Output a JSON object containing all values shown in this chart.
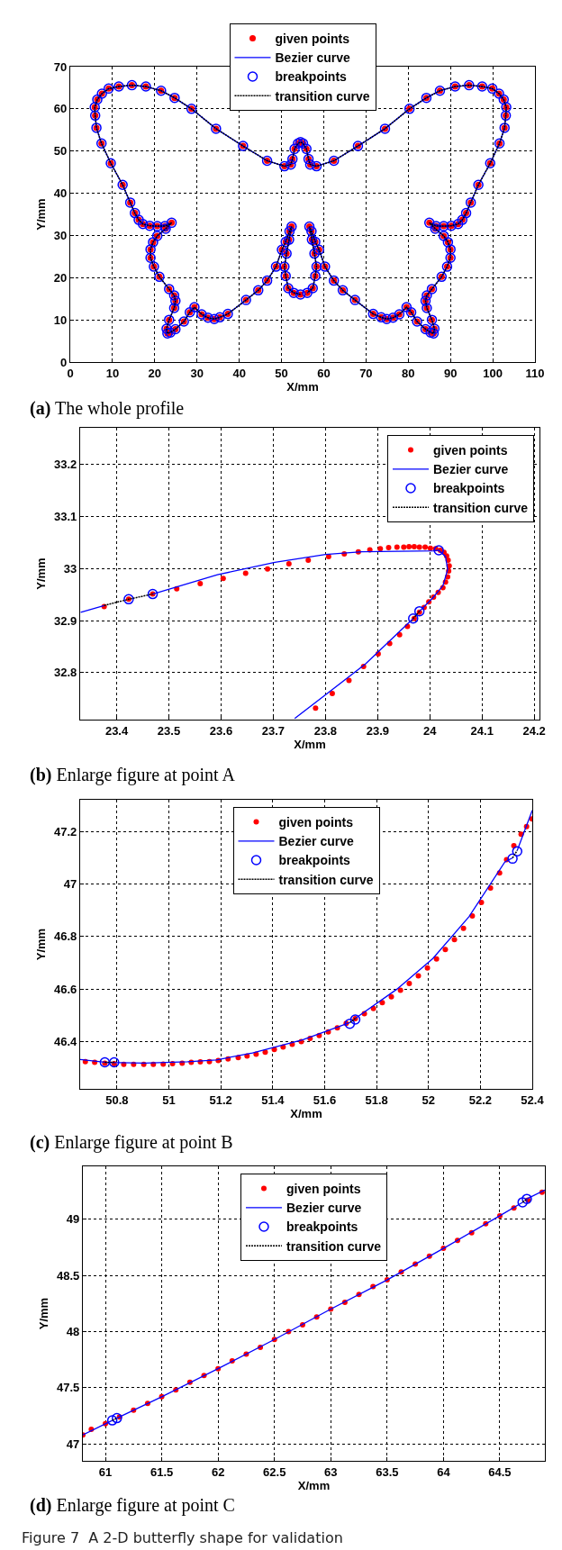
{
  "chart_data": [
    {
      "type": "scatter",
      "title": "(a) The whole profile",
      "xlabel": "X/mm",
      "ylabel": "Y/mm",
      "grid": true,
      "legend": "top",
      "xlim": [
        0,
        110
      ],
      "xticks": [
        0,
        10,
        20,
        30,
        40,
        50,
        60,
        70,
        80,
        90,
        100,
        110
      ],
      "ylim": [
        0,
        70
      ],
      "yticks": [
        0,
        10,
        20,
        30,
        40,
        50,
        60,
        70
      ],
      "series": [
        {
          "name": "given points",
          "marker": "circle",
          "color": "#ff0000",
          "x": [
            54.5,
            52.9,
            51.6,
            51.0,
            50.7,
            51.2,
            51.8,
            52.4,
            51.9,
            51.0,
            50.1,
            48.7,
            46.6,
            44.5,
            41.6,
            37.3,
            35.4,
            34.1,
            32.6,
            31.1,
            29.4,
            28.3,
            26.9,
            24.9,
            23.7,
            23.0,
            22.8,
            23.4,
            24.6,
            24.9,
            24.6,
            23.4,
            21.1,
            19.8,
            19.0,
            19.0,
            19.6,
            20.6,
            22.6,
            24.0,
            22.4,
            20.6,
            18.8,
            17.2,
            16.2,
            15.3,
            14.2,
            12.4,
            9.6,
            7.4,
            6.2,
            5.9,
            5.8,
            6.4,
            7.5,
            9.1,
            11.5,
            14.6,
            17.9,
            21.5,
            24.7,
            28.7,
            34.5,
            40.9,
            46.6,
            50.7,
            52.2,
            52.6,
            53.1,
            53.9,
            54.5,
            55.1,
            55.9,
            56.4,
            56.8,
            58.3,
            62.4,
            68.1,
            74.5,
            80.3,
            84.3,
            87.5,
            91.1,
            94.4,
            97.5,
            99.9,
            101.5,
            102.6,
            103.2,
            103.1,
            102.8,
            101.6,
            99.4,
            96.6,
            94.8,
            93.7,
            92.8,
            91.8,
            90.2,
            88.4,
            86.6,
            85.0,
            86.4,
            88.4,
            89.4,
            90.0,
            90.0,
            89.2,
            87.9,
            85.6,
            84.4,
            84.1,
            84.4,
            85.6,
            86.2,
            86.0,
            85.3,
            84.1,
            82.1,
            80.7,
            79.6,
            77.9,
            76.4,
            74.9,
            73.6,
            71.7,
            67.4,
            64.5,
            62.4,
            60.3,
            58.9,
            58.0,
            57.1,
            56.6,
            57.2,
            57.8,
            58.3,
            58.0,
            57.4,
            56.1
          ],
          "values": [
            16.0,
            16.4,
            17.5,
            20.4,
            22.6,
            25.7,
            29.0,
            32.1,
            31.0,
            28.5,
            26.6,
            22.6,
            19.3,
            17.0,
            14.7,
            11.4,
            10.6,
            10.2,
            10.5,
            11.3,
            13.0,
            11.8,
            9.6,
            7.8,
            7.0,
            6.8,
            7.9,
            10.0,
            12.8,
            14.5,
            15.8,
            17.3,
            20.2,
            22.6,
            24.7,
            26.7,
            28.4,
            29.9,
            31.6,
            33.0,
            32.2,
            32.2,
            32.3,
            32.7,
            33.7,
            35.3,
            37.8,
            42.0,
            47.1,
            51.8,
            55.5,
            58.4,
            60.4,
            62.2,
            63.6,
            64.8,
            65.3,
            65.6,
            65.3,
            64.3,
            62.6,
            60.0,
            55.3,
            51.2,
            47.7,
            46.4,
            46.8,
            48.1,
            50.5,
            51.8,
            52.1,
            51.8,
            50.5,
            48.1,
            46.8,
            46.4,
            47.7,
            51.2,
            55.3,
            60.0,
            62.6,
            64.3,
            65.3,
            65.6,
            65.3,
            64.8,
            63.6,
            62.2,
            60.4,
            58.4,
            55.5,
            51.8,
            47.1,
            42.0,
            37.8,
            35.3,
            33.7,
            32.7,
            32.3,
            32.2,
            32.2,
            33.0,
            31.6,
            29.9,
            28.4,
            26.7,
            24.7,
            22.6,
            20.2,
            17.3,
            15.8,
            14.5,
            12.8,
            10.0,
            7.9,
            6.8,
            7.0,
            7.8,
            9.6,
            11.8,
            13.0,
            11.3,
            10.5,
            10.2,
            10.6,
            11.4,
            14.7,
            17.0,
            19.3,
            22.6,
            26.6,
            28.5,
            31.0,
            32.1,
            29.0,
            25.7,
            22.6,
            20.4,
            17.5,
            16.4
          ]
        },
        {
          "name": "Bezier curve",
          "type": "line",
          "line_style": "solid",
          "color": "#0000ff",
          "x": [
            54.5,
            52.9,
            51.6,
            51.0,
            50.7,
            51.2,
            51.8,
            52.4,
            51.9,
            51.0,
            50.1,
            48.7,
            46.6,
            44.5,
            41.6,
            37.3,
            35.4,
            34.1,
            32.6,
            31.1,
            29.4,
            28.3,
            26.9,
            24.9,
            23.7,
            23.0,
            22.8,
            23.4,
            24.6,
            24.9,
            24.6,
            23.4,
            21.1,
            19.8,
            19.0,
            19.0,
            19.6,
            20.6,
            22.6,
            24.0,
            22.4,
            20.6,
            18.8,
            17.2,
            16.2,
            15.3,
            14.2,
            12.4,
            9.6,
            7.4,
            6.2,
            5.9,
            5.8,
            6.4,
            7.5,
            9.1,
            11.5,
            14.6,
            17.9,
            21.5,
            24.7,
            28.7,
            34.5,
            40.9,
            46.6,
            50.7,
            52.2,
            52.6,
            53.1,
            53.9,
            54.5,
            55.1,
            55.9,
            56.4,
            56.8,
            58.3,
            62.4,
            68.1,
            74.5,
            80.3,
            84.3,
            87.5,
            91.1,
            94.4,
            97.5,
            99.9,
            101.5,
            102.6,
            103.2,
            103.1,
            102.8,
            101.6,
            99.4,
            96.6,
            94.8,
            93.7,
            92.8,
            91.8,
            90.2,
            88.4,
            86.6,
            85.0,
            86.4,
            88.4,
            89.4,
            90.0,
            90.0,
            89.2,
            87.9,
            85.6,
            84.4,
            84.1,
            84.4,
            85.6,
            86.2,
            86.0,
            85.3,
            84.1,
            82.1,
            80.7,
            79.6,
            77.9,
            76.4,
            74.9,
            73.6,
            71.7,
            67.4,
            64.5,
            62.4,
            60.3,
            58.9,
            58.0,
            57.1,
            56.6,
            57.2,
            57.8,
            58.3,
            58.0,
            57.4,
            56.1
          ],
          "values": [
            16.0,
            16.4,
            17.5,
            20.4,
            22.6,
            25.7,
            29.0,
            32.1,
            31.0,
            28.5,
            26.6,
            22.6,
            19.3,
            17.0,
            14.7,
            11.4,
            10.6,
            10.2,
            10.5,
            11.3,
            13.0,
            11.8,
            9.6,
            7.8,
            7.0,
            6.8,
            7.9,
            10.0,
            12.8,
            14.5,
            15.8,
            17.3,
            20.2,
            22.6,
            24.7,
            26.7,
            28.4,
            29.9,
            31.6,
            33.0,
            32.2,
            32.2,
            32.3,
            32.7,
            33.7,
            35.3,
            37.8,
            42.0,
            47.1,
            51.8,
            55.5,
            58.4,
            60.4,
            62.2,
            63.6,
            64.8,
            65.3,
            65.6,
            65.3,
            64.3,
            62.6,
            60.0,
            55.3,
            51.2,
            47.7,
            46.4,
            46.8,
            48.1,
            50.5,
            51.8,
            52.1,
            51.8,
            50.5,
            48.1,
            46.8,
            46.4,
            47.7,
            51.2,
            55.3,
            60.0,
            62.6,
            64.3,
            65.3,
            65.6,
            65.3,
            64.8,
            63.6,
            62.2,
            60.4,
            58.4,
            55.5,
            51.8,
            47.1,
            42.0,
            37.8,
            35.3,
            33.7,
            32.7,
            32.3,
            32.2,
            32.2,
            33.0,
            31.6,
            29.9,
            28.4,
            26.7,
            24.7,
            22.6,
            20.2,
            17.3,
            15.8,
            14.5,
            12.8,
            10.0,
            7.9,
            6.8,
            7.0,
            7.8,
            9.6,
            11.8,
            13.0,
            11.3,
            10.5,
            10.2,
            10.6,
            11.4,
            14.7,
            17.0,
            19.3,
            22.6,
            26.6,
            28.5,
            31.0,
            32.1,
            29.0,
            25.7,
            22.6,
            20.4,
            17.5,
            16.4
          ]
        },
        {
          "name": "breakpoints",
          "color": "#0000ff",
          "x": [
            54.5,
            52.9,
            51.6,
            51.0,
            50.7,
            51.2,
            51.8,
            52.4,
            51.9,
            51.0,
            50.1,
            48.7,
            46.6,
            44.5,
            41.6,
            37.3,
            35.4,
            34.1,
            32.6,
            31.1,
            29.4,
            28.3,
            26.9,
            24.9,
            23.7,
            23.0,
            22.8,
            23.4,
            24.6,
            24.9,
            24.6,
            23.4,
            21.1,
            19.8,
            19.0,
            19.0,
            19.6,
            20.6,
            22.6,
            24.0,
            22.4,
            20.6,
            18.8,
            17.2,
            16.2,
            15.3,
            14.2,
            12.4,
            9.6,
            7.4,
            6.2,
            5.9,
            5.8,
            6.4,
            7.5,
            9.1,
            11.5,
            14.6,
            17.9,
            21.5,
            24.7,
            28.7,
            34.5,
            40.9,
            46.6,
            50.7,
            52.2,
            52.6,
            53.1,
            53.9,
            54.5,
            55.1,
            55.9,
            56.4,
            56.8,
            58.3,
            62.4,
            68.1,
            74.5,
            80.3,
            84.3,
            87.5,
            91.1,
            94.4,
            97.5,
            99.9,
            101.5,
            102.6,
            103.2,
            103.1,
            102.8,
            101.6,
            99.4,
            96.6,
            94.8,
            93.7,
            92.8,
            91.8,
            90.2,
            88.4,
            86.6,
            85.0,
            86.4,
            88.4,
            89.4,
            90.0,
            90.0,
            89.2,
            87.9,
            85.6,
            84.4,
            84.1,
            84.4,
            85.6,
            86.2,
            86.0,
            85.3,
            84.1,
            82.1,
            80.7,
            79.6,
            77.9,
            76.4,
            74.9,
            73.6,
            71.7,
            67.4,
            64.5,
            62.4,
            60.3,
            58.9,
            58.0,
            57.1,
            56.6,
            57.2,
            57.8,
            58.3,
            58.0,
            57.4,
            56.1
          ],
          "values": [
            16.0,
            16.4,
            17.5,
            20.4,
            22.6,
            25.7,
            29.0,
            32.1,
            31.0,
            28.5,
            26.6,
            22.6,
            19.3,
            17.0,
            14.7,
            11.4,
            10.6,
            10.2,
            10.5,
            11.3,
            13.0,
            11.8,
            9.6,
            7.8,
            7.0,
            6.8,
            7.9,
            10.0,
            12.8,
            14.5,
            15.8,
            17.3,
            20.2,
            22.6,
            24.7,
            26.7,
            28.4,
            29.9,
            31.6,
            33.0,
            32.2,
            32.2,
            32.3,
            32.7,
            33.7,
            35.3,
            37.8,
            42.0,
            47.1,
            51.8,
            55.5,
            58.4,
            60.4,
            62.2,
            63.6,
            64.8,
            65.3,
            65.6,
            65.3,
            64.3,
            62.6,
            60.0,
            55.3,
            51.2,
            47.7,
            46.4,
            46.8,
            48.1,
            50.5,
            51.8,
            52.1,
            51.8,
            50.5,
            48.1,
            46.8,
            46.4,
            47.7,
            51.2,
            55.3,
            60.0,
            62.6,
            64.3,
            65.3,
            65.6,
            65.3,
            64.8,
            63.6,
            62.2,
            60.4,
            58.4,
            55.5,
            51.8,
            47.1,
            42.0,
            37.8,
            35.3,
            33.7,
            32.7,
            32.3,
            32.2,
            32.2,
            33.0,
            31.6,
            29.9,
            28.4,
            26.7,
            24.7,
            22.6,
            20.2,
            17.3,
            15.8,
            14.5,
            12.8,
            10.0,
            7.9,
            6.8,
            7.0,
            7.8,
            9.6,
            11.8,
            13.0,
            11.3,
            10.5,
            10.2,
            10.6,
            11.4,
            14.7,
            17.0,
            19.3,
            22.6,
            26.6,
            28.5,
            31.0,
            32.1,
            29.0,
            25.7,
            22.6,
            20.4,
            17.5,
            16.4
          ]
        },
        {
          "name": "transition curve",
          "type": "line",
          "line_style": "dotted",
          "color": "#000000",
          "x": [
            54.5,
            52.9,
            51.6,
            51.0,
            50.7,
            51.2,
            51.8,
            52.4,
            51.9,
            51.0,
            50.1,
            48.7,
            46.6,
            44.5,
            41.6,
            37.3,
            35.4,
            34.1,
            32.6,
            31.1,
            29.4,
            28.3,
            26.9,
            24.9,
            23.7,
            23.0,
            22.8,
            23.4,
            24.6,
            24.9,
            24.6,
            23.4,
            21.1,
            19.8,
            19.0,
            19.0,
            19.6,
            20.6,
            22.6,
            24.0,
            22.4,
            20.6,
            18.8,
            17.2,
            16.2,
            15.3,
            14.2,
            12.4,
            9.6,
            7.4,
            6.2,
            5.9,
            5.8,
            6.4,
            7.5,
            9.1,
            11.5,
            14.6,
            17.9,
            21.5,
            24.7,
            28.7,
            34.5,
            40.9,
            46.6,
            50.7,
            52.2,
            52.6,
            53.1,
            53.9,
            54.5,
            55.1,
            55.9,
            56.4,
            56.8,
            58.3,
            62.4,
            68.1,
            74.5,
            80.3,
            84.3,
            87.5,
            91.1,
            94.4,
            97.5,
            99.9,
            101.5,
            102.6,
            103.2,
            103.1,
            102.8,
            101.6,
            99.4,
            96.6,
            94.8,
            93.7,
            92.8,
            91.8,
            90.2,
            88.4,
            86.6,
            85.0,
            86.4,
            88.4,
            89.4,
            90.0,
            90.0,
            89.2,
            87.9,
            85.6,
            84.4,
            84.1,
            84.4,
            85.6,
            86.2,
            86.0,
            85.3,
            84.1,
            82.1,
            80.7,
            79.6,
            77.9,
            76.4,
            74.9,
            73.6,
            71.7,
            67.4,
            64.5,
            62.4,
            60.3,
            58.9,
            58.0,
            57.1,
            56.6,
            57.2,
            57.8,
            58.3,
            58.0,
            57.4,
            56.1
          ],
          "values": [
            16.0,
            16.4,
            17.5,
            20.4,
            22.6,
            25.7,
            29.0,
            32.1,
            31.0,
            28.5,
            26.6,
            22.6,
            19.3,
            17.0,
            14.7,
            11.4,
            10.6,
            10.2,
            10.5,
            11.3,
            13.0,
            11.8,
            9.6,
            7.8,
            7.0,
            6.8,
            7.9,
            10.0,
            12.8,
            14.5,
            15.8,
            17.3,
            20.2,
            22.6,
            24.7,
            26.7,
            28.4,
            29.9,
            31.6,
            33.0,
            32.2,
            32.2,
            32.3,
            32.7,
            33.7,
            35.3,
            37.8,
            42.0,
            47.1,
            51.8,
            55.5,
            58.4,
            60.4,
            62.2,
            63.6,
            64.8,
            65.3,
            65.6,
            65.3,
            64.3,
            62.6,
            60.0,
            55.3,
            51.2,
            47.7,
            46.4,
            46.8,
            48.1,
            50.5,
            51.8,
            52.1,
            51.8,
            50.5,
            48.1,
            46.8,
            46.4,
            47.7,
            51.2,
            55.3,
            60.0,
            62.6,
            64.3,
            65.3,
            65.6,
            65.3,
            64.8,
            63.6,
            62.2,
            60.4,
            58.4,
            55.5,
            51.8,
            47.1,
            42.0,
            37.8,
            35.3,
            33.7,
            32.7,
            32.3,
            32.2,
            32.2,
            33.0,
            31.6,
            29.9,
            28.4,
            26.7,
            24.7,
            22.6,
            20.2,
            17.3,
            15.8,
            14.5,
            12.8,
            10.0,
            7.9,
            6.8,
            7.0,
            7.8,
            9.6,
            11.8,
            13.0,
            11.3,
            10.5,
            10.2,
            10.6,
            11.4,
            14.7,
            17.0,
            19.3,
            22.6,
            26.6,
            28.5,
            31.0,
            32.1,
            29.0,
            25.7,
            22.6,
            20.4,
            17.5,
            16.4
          ]
        }
      ]
    },
    {
      "type": "scatter",
      "title": "(b) Enlarge figure at point A",
      "xlabel": "X/mm",
      "ylabel": "Y/mm",
      "grid": true,
      "legend": "top right",
      "xlim": [
        23.33,
        24.21
      ],
      "xticks": [
        23.4,
        23.5,
        23.6,
        23.7,
        23.8,
        23.9,
        24,
        24.1,
        24.2
      ],
      "ylim": [
        32.71,
        33.27
      ],
      "yticks": [
        32.8,
        32.9,
        33,
        33.1,
        33.2
      ],
      "series": [
        {
          "name": "given points",
          "marker": "circle",
          "color": "#ff0000",
          "x": [
            23.376,
            23.423,
            23.469,
            23.515,
            23.56,
            23.604,
            23.647,
            23.689,
            23.73,
            23.767,
            23.806,
            23.836,
            23.863,
            23.885,
            23.905,
            23.921,
            23.937,
            23.95,
            23.96,
            23.97,
            23.98,
            23.991,
            24.001,
            24.011,
            24.02,
            24.027,
            24.032,
            24.035,
            24.037,
            24.036,
            24.034,
            24.03,
            24.025,
            24.016,
            24.007,
            23.998,
            23.989,
            23.98,
            23.97,
            23.957,
            23.942,
            23.923,
            23.901,
            23.873,
            23.845,
            23.813,
            23.781
          ],
          "values": [
            32.927,
            32.941,
            32.951,
            32.961,
            32.971,
            32.981,
            32.991,
            32.999,
            33.009,
            33.016,
            33.023,
            33.028,
            33.032,
            33.036,
            33.038,
            33.04,
            33.041,
            33.041,
            33.042,
            33.042,
            33.041,
            33.041,
            33.039,
            33.038,
            33.035,
            33.031,
            33.024,
            33.016,
            33.005,
            32.995,
            32.984,
            32.974,
            32.963,
            32.954,
            32.945,
            32.936,
            32.925,
            32.916,
            32.904,
            32.889,
            32.873,
            32.856,
            32.836,
            32.812,
            32.785,
            32.76,
            32.732
          ]
        },
        {
          "name": "Bezier curve",
          "type": "line",
          "line_style": "solid",
          "color": "#0000ff",
          "x": [
            23.331,
            23.376,
            null,
            23.469,
            23.593,
            23.703,
            23.8,
            23.87,
            24.008,
            24.017,
            24.03,
            24.034,
            24.025,
            24.005,
            23.98,
            null,
            23.968,
            23.877,
            23.741
          ],
          "values": [
            32.916,
            32.929,
            null,
            32.951,
            32.988,
            33.012,
            33.027,
            33.032,
            33.034,
            33.035,
            33.023,
            32.998,
            32.967,
            32.943,
            32.918,
            null,
            32.904,
            32.817,
            32.712
          ]
        },
        {
          "name": "breakpoints",
          "color": "#0000ff",
          "x": [
            23.423,
            23.469,
            24.017,
            23.98,
            23.968
          ],
          "values": [
            32.941,
            32.951,
            33.035,
            32.918,
            32.904
          ]
        },
        {
          "name": "transition curve",
          "type": "line",
          "line_style": "dotted",
          "color": "#000000",
          "x": [
            23.376,
            23.423,
            23.469,
            null,
            23.98,
            23.968
          ],
          "values": [
            32.929,
            32.941,
            32.951,
            null,
            32.918,
            32.904
          ]
        }
      ]
    },
    {
      "type": "scatter",
      "title": "(c) Enlarge figure at point B",
      "xlabel": "X/mm",
      "ylabel": "Y/mm",
      "grid": true,
      "legend": "top",
      "xlim": [
        50.658,
        52.4
      ],
      "xticks": [
        50.8,
        51,
        51.2,
        51.4,
        51.6,
        51.8,
        52,
        52.2,
        52.4
      ],
      "ylim": [
        46.22,
        47.32
      ],
      "yticks": [
        46.4,
        46.6,
        46.8,
        47,
        47.2
      ],
      "series": [
        {
          "name": "given points",
          "marker": "circle",
          "color": "#ff0000",
          "x": [
            50.678,
            50.714,
            50.753,
            50.789,
            50.826,
            50.864,
            50.903,
            50.94,
            50.978,
            51.014,
            51.051,
            51.086,
            51.121,
            51.156,
            51.19,
            51.228,
            51.267,
            51.301,
            51.336,
            51.371,
            51.406,
            51.44,
            51.475,
            51.51,
            51.544,
            51.579,
            51.614,
            51.649,
            51.683,
            51.718,
            51.753,
            51.788,
            51.822,
            51.857,
            51.892,
            51.926,
            51.961,
            51.996,
            52.031,
            52.065,
            52.1,
            52.135,
            52.169,
            52.204,
            52.239,
            52.274,
            52.301,
            52.329,
            52.357,
            52.378,
            52.399
          ],
          "values": [
            46.324,
            46.321,
            46.318,
            46.316,
            46.313,
            46.313,
            46.313,
            46.313,
            46.314,
            46.316,
            46.318,
            46.321,
            46.323,
            46.324,
            46.328,
            46.334,
            46.339,
            46.345,
            46.352,
            46.36,
            46.37,
            46.379,
            46.39,
            46.4,
            46.412,
            46.423,
            46.437,
            46.452,
            46.469,
            46.487,
            46.506,
            46.526,
            46.548,
            46.57,
            46.595,
            46.621,
            46.65,
            46.68,
            46.714,
            46.75,
            46.788,
            46.831,
            46.878,
            46.929,
            46.984,
            47.042,
            47.092,
            47.145,
            47.189,
            47.218,
            47.247
          ]
        },
        {
          "name": "Bezier curve",
          "type": "line",
          "line_style": "solid",
          "color": "#0000ff",
          "x": [
            50.658,
            50.76,
            50.906,
            51.072,
            51.183,
            51.322,
            51.517,
            51.697,
            null,
            51.718,
            51.878,
            52.017,
            52.156,
            52.294,
            52.324,
            null,
            52.342,
            52.4
          ],
          "values": [
            46.332,
            46.321,
            46.318,
            46.323,
            46.33,
            46.357,
            46.407,
            46.472,
            null,
            46.488,
            46.599,
            46.716,
            46.875,
            47.083,
            47.099,
            null,
            47.127,
            47.28
          ]
        },
        {
          "name": "breakpoints",
          "color": "#0000ff",
          "x": [
            50.753,
            50.789,
            51.697,
            51.718,
            52.324,
            52.342
          ],
          "values": [
            46.321,
            46.321,
            46.468,
            46.484,
            47.096,
            47.124
          ]
        },
        {
          "name": "transition curve",
          "type": "line",
          "line_style": "dotted",
          "color": "#000000",
          "x": [
            50.753,
            50.789,
            null,
            51.697,
            51.718,
            null,
            52.324,
            52.342
          ],
          "values": [
            46.321,
            46.321,
            null,
            46.472,
            46.488,
            null,
            47.099,
            47.127
          ]
        }
      ]
    },
    {
      "type": "scatter",
      "title": "(d) Enlarge figure at point C",
      "xlabel": "X/mm",
      "ylabel": "Y/mm",
      "grid": true,
      "legend": "top",
      "xlim": [
        60.8,
        64.9
      ],
      "xticks": [
        61,
        61.5,
        62,
        62.5,
        63,
        63.5,
        64,
        64.5
      ],
      "ylim": [
        46.85,
        49.47
      ],
      "yticks": [
        47,
        47.5,
        48,
        48.5,
        49
      ],
      "annotations": [
        "Figure 7  A 2-D butterfly shape for validation"
      ],
      "series": [
        {
          "name": "given points",
          "marker": "circle",
          "color": "#ff0000",
          "x": [
            60.8,
            60.875,
            61.0,
            61.125,
            61.25,
            61.375,
            61.5,
            61.625,
            61.75,
            61.875,
            62.0,
            62.125,
            62.25,
            62.375,
            62.5,
            62.625,
            62.75,
            62.875,
            63.0,
            63.125,
            63.25,
            63.375,
            63.5,
            63.625,
            63.75,
            63.875,
            64.0,
            64.125,
            64.25,
            64.375,
            64.5,
            64.625,
            64.75,
            64.875
          ],
          "values": [
            47.08,
            47.13,
            47.18,
            47.24,
            47.3,
            47.36,
            47.42,
            47.48,
            47.55,
            47.61,
            47.67,
            47.74,
            47.8,
            47.86,
            47.93,
            48.0,
            48.06,
            48.13,
            48.2,
            48.26,
            48.33,
            48.4,
            48.46,
            48.53,
            48.6,
            48.67,
            48.74,
            48.81,
            48.88,
            48.96,
            49.03,
            49.1,
            49.17,
            49.24
          ]
        },
        {
          "name": "Bezier curve",
          "type": "line",
          "line_style": "solid",
          "color": "#0000ff",
          "x": [
            60.8,
            61.061,
            null,
            61.102,
            61.5,
            62,
            62.5,
            63,
            63.5,
            64,
            64.5,
            64.702,
            null,
            64.74,
            64.9
          ],
          "values": [
            47.08,
            47.21,
            null,
            47.23,
            47.42,
            47.67,
            47.93,
            48.2,
            48.46,
            48.74,
            49.03,
            49.15,
            null,
            49.18,
            49.26
          ]
        },
        {
          "name": "breakpoints",
          "color": "#0000ff",
          "x": [
            61.061,
            61.102,
            64.702,
            64.74
          ],
          "values": [
            47.21,
            47.23,
            49.15,
            49.18
          ]
        },
        {
          "name": "transition curve",
          "type": "line",
          "line_style": "dotted",
          "color": "#000000",
          "x": [
            61.061,
            61.102,
            null,
            64.702,
            64.74
          ],
          "values": [
            47.21,
            47.23,
            null,
            49.15,
            49.18
          ]
        }
      ]
    }
  ]
}
